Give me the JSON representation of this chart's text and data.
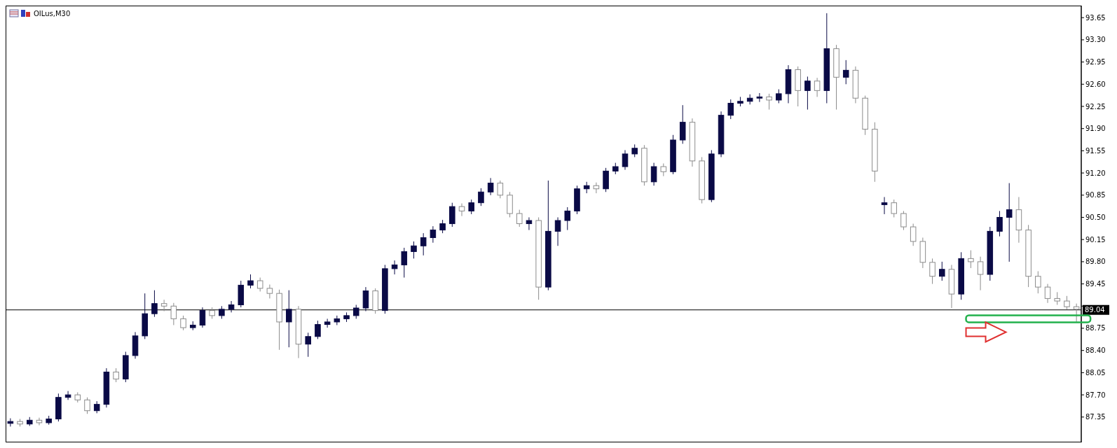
{
  "chart_data": {
    "type": "candlestick",
    "title": "OILus,M30",
    "categories": [
      null,
      null,
      null,
      null,
      null,
      null,
      null,
      null,
      null,
      null,
      null,
      null,
      null,
      null,
      null,
      null,
      null,
      null,
      null,
      null,
      null,
      null,
      null,
      null,
      null,
      null,
      null,
      null,
      null,
      null,
      null,
      null,
      null,
      null,
      null,
      null,
      null,
      null,
      null,
      null,
      null,
      null,
      null,
      null,
      null,
      null,
      null,
      null,
      null,
      null,
      null,
      null,
      null,
      null,
      null,
      null,
      null,
      null,
      null,
      null,
      null,
      null,
      null,
      null,
      null,
      null,
      null,
      null,
      null,
      null,
      null,
      null,
      null,
      null,
      null,
      null,
      null,
      null,
      null,
      null,
      null,
      null,
      null,
      null,
      null,
      null,
      null,
      null,
      null,
      null,
      null,
      null,
      null,
      null,
      null,
      null,
      null,
      null,
      null,
      null,
      null,
      null,
      null,
      null,
      null,
      null,
      null,
      null,
      null,
      null,
      null,
      null
    ],
    "colors": [
      "#0a0a46",
      "#8c8c8c",
      "#0a0a46",
      "#8c8c8c",
      "#0a0a46",
      "#0a0a46",
      "#0a0a46",
      "#8c8c8c",
      "#8c8c8c",
      "#0a0a46",
      "#0a0a46",
      "#8c8c8c",
      "#0a0a46",
      "#0a0a46",
      "#0a0a46",
      "#0a0a46",
      "#8c8c8c",
      "#8c8c8c",
      "#8c8c8c",
      "#0a0a46",
      "#0a0a46",
      "#8c8c8c",
      "#0a0a46",
      "#0a0a46",
      "#0a0a46",
      "#0a0a46",
      "#8c8c8c",
      "#8c8c8c",
      "#8c8c8c",
      "#0a0a46",
      "#8c8c8c",
      "#0a0a46",
      "#0a0a46",
      "#0a0a46",
      "#0a0a46",
      "#0a0a46",
      "#0a0a46",
      "#0a0a46",
      "#8c8c8c",
      "#0a0a46",
      "#0a0a46",
      "#0a0a46",
      "#0a0a46",
      "#0a0a46",
      "#0a0a46",
      "#0a0a46",
      "#0a0a46",
      "#8c8c8c",
      "#0a0a46",
      "#0a0a46",
      "#0a0a46",
      "#8c8c8c",
      "#8c8c8c",
      "#8c8c8c",
      "#0a0a46",
      "#8c8c8c",
      "#0a0a46",
      "#0a0a46",
      "#0a0a46",
      "#0a0a46",
      "#0a0a46",
      "#8c8c8c",
      "#0a0a46",
      "#0a0a46",
      "#0a0a46",
      "#0a0a46",
      "#8c8c8c",
      "#0a0a46",
      "#8c8c8c",
      "#0a0a46",
      "#0a0a46",
      "#8c8c8c",
      "#8c8c8c",
      "#0a0a46",
      "#0a0a46",
      "#0a0a46",
      "#0a0a46",
      "#0a0a46",
      "#0a0a46",
      "#8c8c8c",
      "#0a0a46",
      "#0a0a46",
      "#8c8c8c",
      "#0a0a46",
      "#8c8c8c",
      "#0a0a46",
      "#8c8c8c",
      "#0a0a46",
      "#8c8c8c",
      "#8c8c8c",
      "#8c8c8c",
      "#0a0a46",
      "#8c8c8c",
      "#8c8c8c",
      "#8c8c8c",
      "#8c8c8c",
      "#8c8c8c",
      "#0a0a46",
      "#8c8c8c",
      "#0a0a46",
      "#8c8c8c",
      "#8c8c8c",
      "#0a0a46",
      "#0a0a46",
      "#0a0a46",
      "#8c8c8c",
      "#8c8c8c",
      "#8c8c8c",
      "#8c8c8c",
      "#8c8c8c",
      "#8c8c8c",
      "#8c8c8c"
    ],
    "ohlc": [
      [
        87.25,
        87.33,
        87.2,
        87.28
      ],
      [
        87.28,
        87.32,
        87.2,
        87.24
      ],
      [
        87.24,
        87.35,
        87.21,
        87.3
      ],
      [
        87.3,
        87.34,
        87.22,
        87.26
      ],
      [
        87.26,
        87.37,
        87.23,
        87.32
      ],
      [
        87.32,
        87.72,
        87.28,
        87.66
      ],
      [
        87.66,
        87.76,
        87.62,
        87.7
      ],
      [
        87.7,
        87.74,
        87.58,
        87.62
      ],
      [
        87.62,
        87.66,
        87.4,
        87.45
      ],
      [
        87.45,
        87.6,
        87.41,
        87.55
      ],
      [
        87.55,
        88.12,
        87.5,
        88.06
      ],
      [
        88.06,
        88.12,
        87.9,
        87.95
      ],
      [
        87.95,
        88.38,
        87.9,
        88.32
      ],
      [
        88.32,
        88.69,
        88.27,
        88.63
      ],
      [
        88.63,
        89.3,
        88.58,
        88.98
      ],
      [
        88.98,
        89.35,
        88.93,
        89.14
      ],
      [
        89.14,
        89.2,
        89.02,
        89.1
      ],
      [
        89.1,
        89.15,
        88.8,
        88.9
      ],
      [
        88.9,
        88.95,
        88.72,
        88.76
      ],
      [
        88.76,
        88.86,
        88.72,
        88.8
      ],
      [
        88.8,
        89.08,
        88.76,
        89.03
      ],
      [
        89.03,
        89.08,
        88.9,
        88.95
      ],
      [
        88.95,
        89.1,
        88.9,
        89.05
      ],
      [
        89.05,
        89.18,
        89.0,
        89.12
      ],
      [
        89.12,
        89.5,
        89.08,
        89.43
      ],
      [
        89.43,
        89.6,
        89.38,
        89.5
      ],
      [
        89.5,
        89.55,
        89.33,
        89.38
      ],
      [
        89.38,
        89.44,
        89.22,
        89.3
      ],
      [
        89.3,
        89.36,
        88.41,
        88.85
      ],
      [
        88.85,
        89.35,
        88.45,
        89.05
      ],
      [
        89.05,
        89.1,
        88.28,
        88.5
      ],
      [
        88.5,
        88.68,
        88.3,
        88.62
      ],
      [
        88.62,
        88.87,
        88.58,
        88.81
      ],
      [
        88.81,
        88.9,
        88.76,
        88.85
      ],
      [
        88.85,
        88.95,
        88.8,
        88.9
      ],
      [
        88.9,
        89.0,
        88.85,
        88.95
      ],
      [
        88.95,
        89.12,
        88.9,
        89.07
      ],
      [
        89.07,
        89.4,
        89.02,
        89.34
      ],
      [
        89.34,
        89.38,
        88.98,
        89.03
      ],
      [
        89.03,
        89.75,
        88.98,
        89.69
      ],
      [
        89.69,
        89.82,
        89.6,
        89.75
      ],
      [
        89.75,
        90.02,
        89.55,
        89.96
      ],
      [
        89.96,
        90.12,
        89.85,
        90.05
      ],
      [
        90.05,
        90.25,
        89.9,
        90.18
      ],
      [
        90.18,
        90.36,
        90.1,
        90.3
      ],
      [
        90.3,
        90.46,
        90.25,
        90.4
      ],
      [
        90.4,
        90.73,
        90.35,
        90.67
      ],
      [
        90.67,
        90.72,
        90.52,
        90.6
      ],
      [
        90.6,
        90.78,
        90.55,
        90.73
      ],
      [
        90.73,
        90.96,
        90.68,
        90.9
      ],
      [
        90.9,
        91.12,
        90.85,
        91.04
      ],
      [
        91.04,
        91.08,
        90.8,
        90.85
      ],
      [
        90.85,
        90.9,
        90.5,
        90.56
      ],
      [
        90.56,
        90.62,
        90.35,
        90.4
      ],
      [
        90.4,
        90.5,
        90.3,
        90.45
      ],
      [
        90.45,
        90.5,
        89.2,
        89.4
      ],
      [
        89.4,
        91.08,
        89.35,
        90.28
      ],
      [
        90.28,
        90.5,
        90.05,
        90.45
      ],
      [
        90.45,
        90.66,
        90.3,
        90.6
      ],
      [
        90.6,
        91.0,
        90.55,
        90.95
      ],
      [
        90.95,
        91.06,
        90.88,
        91.0
      ],
      [
        91.0,
        91.05,
        90.88,
        90.95
      ],
      [
        90.95,
        91.28,
        90.9,
        91.23
      ],
      [
        91.23,
        91.36,
        91.18,
        91.3
      ],
      [
        91.3,
        91.56,
        91.25,
        91.5
      ],
      [
        91.5,
        91.65,
        91.45,
        91.59
      ],
      [
        91.59,
        91.64,
        91.0,
        91.06
      ],
      [
        91.06,
        91.36,
        91.0,
        91.3
      ],
      [
        91.3,
        91.35,
        91.15,
        91.22
      ],
      [
        91.22,
        91.8,
        91.18,
        91.72
      ],
      [
        91.72,
        92.27,
        91.66,
        92.0
      ],
      [
        92.0,
        92.06,
        91.3,
        91.39
      ],
      [
        91.39,
        91.45,
        90.72,
        90.78
      ],
      [
        90.78,
        91.56,
        90.74,
        91.5
      ],
      [
        91.5,
        92.17,
        91.45,
        92.11
      ],
      [
        92.11,
        92.36,
        92.05,
        92.3
      ],
      [
        92.3,
        92.4,
        92.25,
        92.33
      ],
      [
        92.33,
        92.44,
        92.28,
        92.38
      ],
      [
        92.38,
        92.46,
        92.32,
        92.4
      ],
      [
        92.4,
        92.45,
        92.2,
        92.35
      ],
      [
        92.35,
        92.52,
        92.3,
        92.45
      ],
      [
        92.45,
        92.9,
        92.3,
        92.83
      ],
      [
        92.83,
        92.88,
        92.25,
        92.5
      ],
      [
        92.5,
        92.72,
        92.2,
        92.65
      ],
      [
        92.65,
        92.7,
        92.4,
        92.5
      ],
      [
        92.5,
        93.72,
        92.3,
        93.16
      ],
      [
        93.16,
        93.22,
        92.2,
        92.71
      ],
      [
        92.71,
        92.98,
        92.6,
        92.82
      ],
      [
        92.82,
        92.88,
        92.3,
        92.38
      ],
      [
        92.38,
        92.42,
        91.8,
        91.89
      ],
      [
        91.89,
        92.0,
        91.06,
        91.23
      ],
      [
        90.7,
        90.82,
        90.55,
        90.73
      ],
      [
        90.73,
        90.78,
        90.5,
        90.56
      ],
      [
        90.56,
        90.6,
        90.3,
        90.35
      ],
      [
        90.35,
        90.4,
        90.05,
        90.12
      ],
      [
        90.12,
        90.18,
        89.7,
        89.79
      ],
      [
        89.79,
        89.85,
        89.45,
        89.57
      ],
      [
        89.57,
        89.8,
        89.5,
        89.68
      ],
      [
        89.68,
        89.75,
        89.07,
        89.29
      ],
      [
        89.29,
        89.95,
        89.2,
        89.85
      ],
      [
        89.85,
        89.98,
        89.7,
        89.8
      ],
      [
        89.8,
        89.88,
        89.35,
        89.6
      ],
      [
        89.6,
        90.35,
        89.5,
        90.28
      ],
      [
        90.28,
        90.6,
        90.2,
        90.5
      ],
      [
        90.5,
        91.04,
        89.8,
        90.62
      ],
      [
        90.62,
        90.82,
        90.1,
        90.3
      ],
      [
        90.3,
        90.38,
        89.4,
        89.57
      ],
      [
        89.57,
        89.65,
        89.3,
        89.4
      ],
      [
        89.4,
        89.45,
        89.15,
        89.22
      ],
      [
        89.22,
        89.32,
        89.12,
        89.18
      ],
      [
        89.18,
        89.26,
        89.05,
        89.09
      ],
      [
        89.09,
        89.14,
        88.85,
        89.05
      ]
    ],
    "ylim": [
      86.95,
      93.84
    ],
    "yticks": [
      93.65,
      {
        "value": 93.3,
        "label": "93.30"
      },
      92.95,
      {
        "value": 92.6,
        "label": "92.60"
      },
      92.25,
      {
        "value": 91.9,
        "label": "91.90"
      },
      91.55,
      {
        "value": 91.2,
        "label": "91.20"
      },
      90.85,
      {
        "value": 90.5,
        "label": "90.50"
      },
      90.15,
      {
        "value": 89.8,
        "label": "89.80"
      },
      89.45,
      {
        "value": 89.1,
        "label": null
      },
      88.75,
      {
        "value": 88.4,
        "label": "88.40"
      },
      88.05,
      {
        "value": 87.7,
        "label": "87.70"
      },
      87.35
    ],
    "ref_lines": [
      {
        "axis": "y",
        "value": 89.04,
        "label": "89.04",
        "color": "#000000"
      }
    ],
    "grid": false,
    "legend": false
  }
}
